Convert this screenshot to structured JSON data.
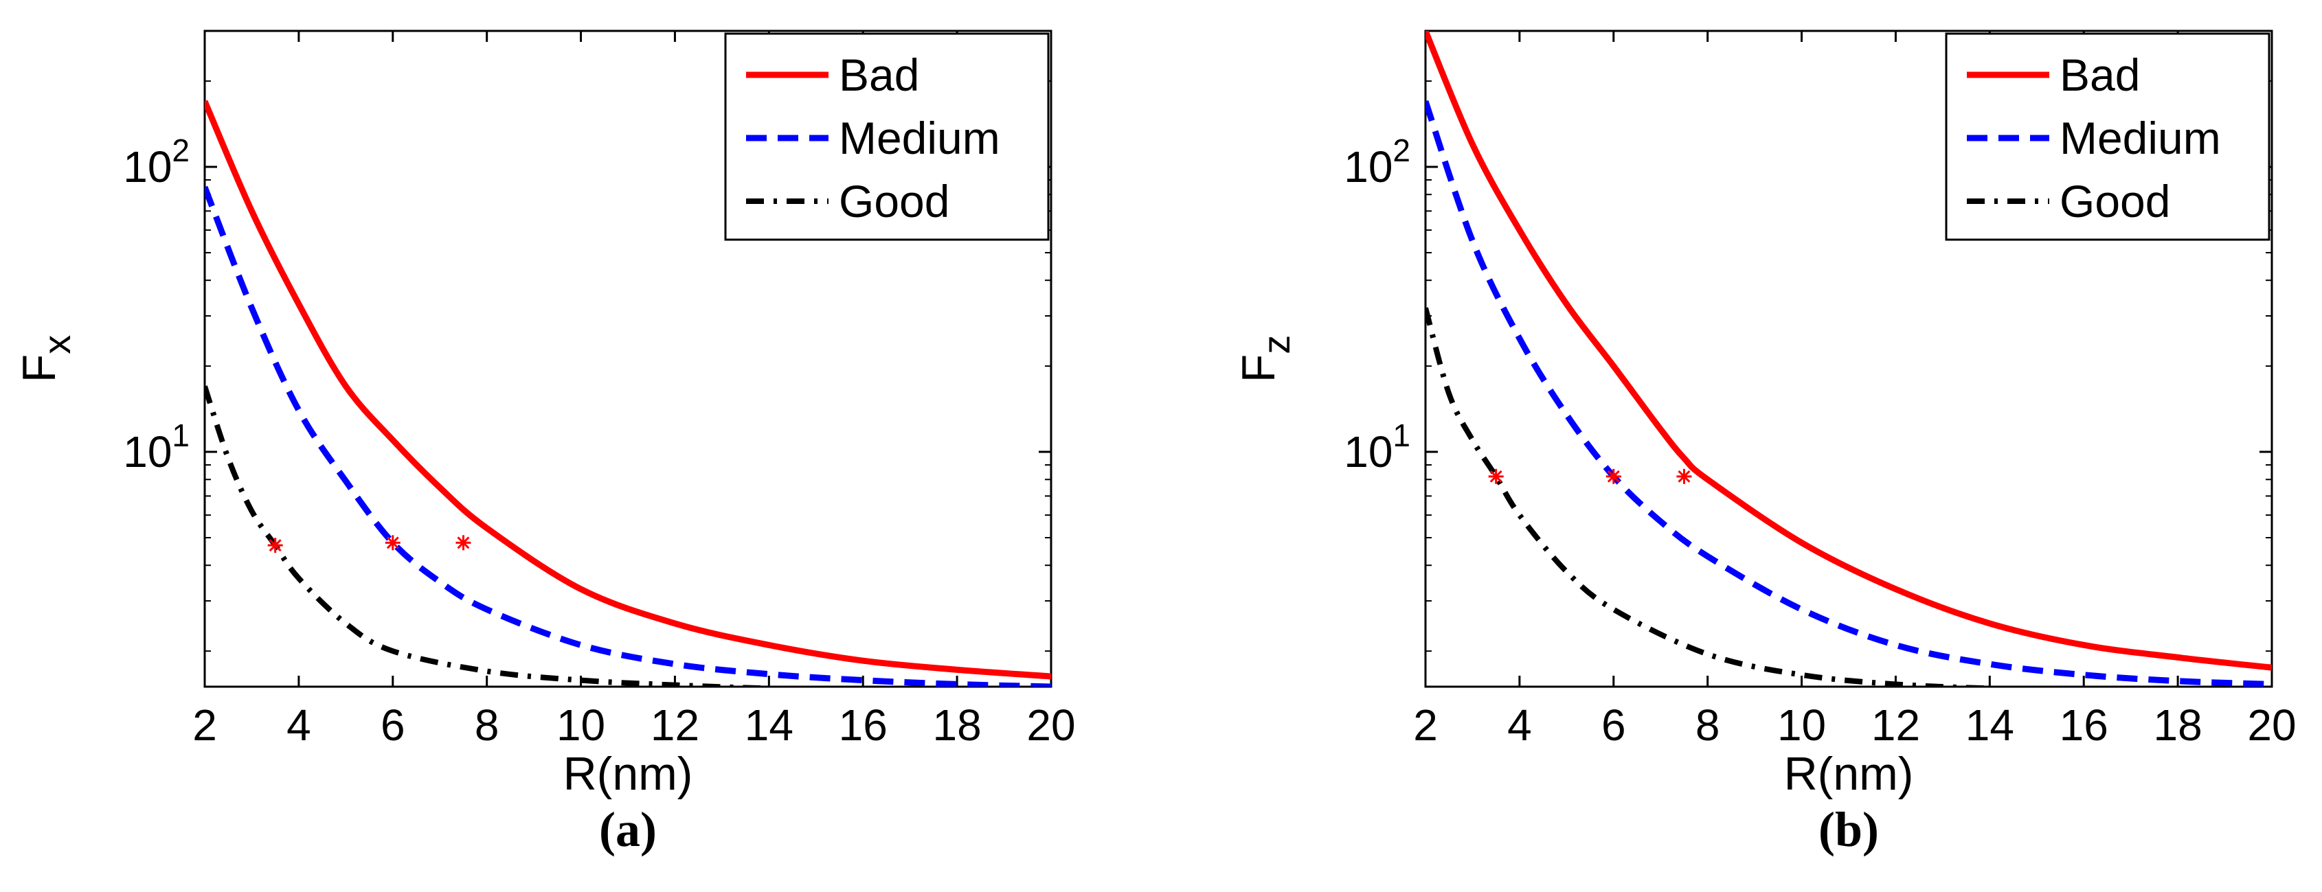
{
  "chart_data": [
    {
      "type": "line",
      "panel_label": "(a)",
      "xlabel": "R(nm)",
      "ylabel": "F",
      "ylabel_sub": "x",
      "xlim": [
        2,
        20
      ],
      "ylim": [
        1.5,
        300
      ],
      "yscale": "log",
      "xticks": [
        2,
        4,
        6,
        8,
        10,
        12,
        14,
        16,
        18,
        20
      ],
      "xtick_labels": [
        "2",
        "4",
        "6",
        "8",
        "10",
        "12",
        "14",
        "16",
        "18",
        "20"
      ],
      "yticks": [
        10,
        100
      ],
      "ytick_base": "10",
      "ytick_exponents": [
        "1",
        "2"
      ],
      "legend_position": "top-right",
      "series": [
        {
          "name": "Bad",
          "style": "solid",
          "color": "#ff0000",
          "x": [
            2,
            3,
            4,
            5,
            6,
            7,
            8,
            10,
            12,
            14,
            16,
            18,
            20
          ],
          "y": [
            170,
            70,
            33,
            17,
            11,
            7.5,
            5.4,
            3.3,
            2.5,
            2.1,
            1.85,
            1.72,
            1.63
          ]
        },
        {
          "name": "Medium",
          "style": "dashed",
          "color": "#0000ff",
          "x": [
            2,
            3,
            4,
            5,
            6,
            7,
            8,
            10,
            12,
            14,
            16,
            18,
            20
          ],
          "y": [
            85,
            32,
            14,
            7.9,
            4.8,
            3.5,
            2.8,
            2.1,
            1.8,
            1.66,
            1.58,
            1.53,
            1.5
          ]
        },
        {
          "name": "Good",
          "style": "dashdot",
          "color": "#000000",
          "x": [
            2,
            2.5,
            3,
            3.5,
            4,
            5,
            6,
            8,
            10,
            12,
            14,
            16,
            18,
            20
          ],
          "y": [
            17,
            9.5,
            6.2,
            4.7,
            3.6,
            2.5,
            2.0,
            1.7,
            1.58,
            1.52,
            1.48,
            1.47,
            1.46,
            1.46
          ]
        }
      ],
      "markers": [
        {
          "x": 3.5,
          "y": 4.7
        },
        {
          "x": 6.0,
          "y": 4.8
        },
        {
          "x": 7.5,
          "y": 4.8
        }
      ]
    },
    {
      "type": "line",
      "panel_label": "(b)",
      "xlabel": "R(nm)",
      "ylabel": "F",
      "ylabel_sub": "z",
      "xlim": [
        2,
        20
      ],
      "ylim": [
        1.5,
        300
      ],
      "yscale": "log",
      "xticks": [
        2,
        4,
        6,
        8,
        10,
        12,
        14,
        16,
        18,
        20
      ],
      "xtick_labels": [
        "2",
        "4",
        "6",
        "8",
        "10",
        "12",
        "14",
        "16",
        "18",
        "20"
      ],
      "yticks": [
        10,
        100
      ],
      "ytick_base": "10",
      "ytick_exponents": [
        "1",
        "2"
      ],
      "legend_position": "top-right",
      "series": [
        {
          "name": "Bad",
          "style": "solid",
          "color": "#ff0000",
          "x": [
            2,
            3,
            4,
            5,
            6,
            7,
            7.5,
            8,
            10,
            12,
            14,
            16,
            18,
            20
          ],
          "y": [
            300,
            120,
            60,
            33,
            20,
            12,
            9.5,
            8.0,
            4.8,
            3.3,
            2.5,
            2.1,
            1.9,
            1.75
          ]
        },
        {
          "name": "Medium",
          "style": "dashed",
          "color": "#0000ff",
          "x": [
            2,
            3,
            4,
            5,
            6,
            7,
            8,
            10,
            12,
            14,
            16,
            18,
            20
          ],
          "y": [
            170,
            55,
            25,
            13.5,
            8.2,
            5.7,
            4.3,
            2.8,
            2.1,
            1.8,
            1.65,
            1.57,
            1.53
          ]
        },
        {
          "name": "Good",
          "style": "dashdot",
          "color": "#000000",
          "x": [
            2,
            2.5,
            3,
            3.5,
            4,
            5,
            6,
            8,
            10,
            12,
            14,
            16,
            18,
            20
          ],
          "y": [
            32,
            16,
            11,
            8.2,
            6.0,
            3.8,
            2.8,
            1.95,
            1.65,
            1.53,
            1.48,
            1.46,
            1.45,
            1.45
          ]
        }
      ],
      "markers": [
        {
          "x": 3.5,
          "y": 8.2
        },
        {
          "x": 6.0,
          "y": 8.2
        },
        {
          "x": 7.5,
          "y": 8.2
        }
      ]
    }
  ]
}
